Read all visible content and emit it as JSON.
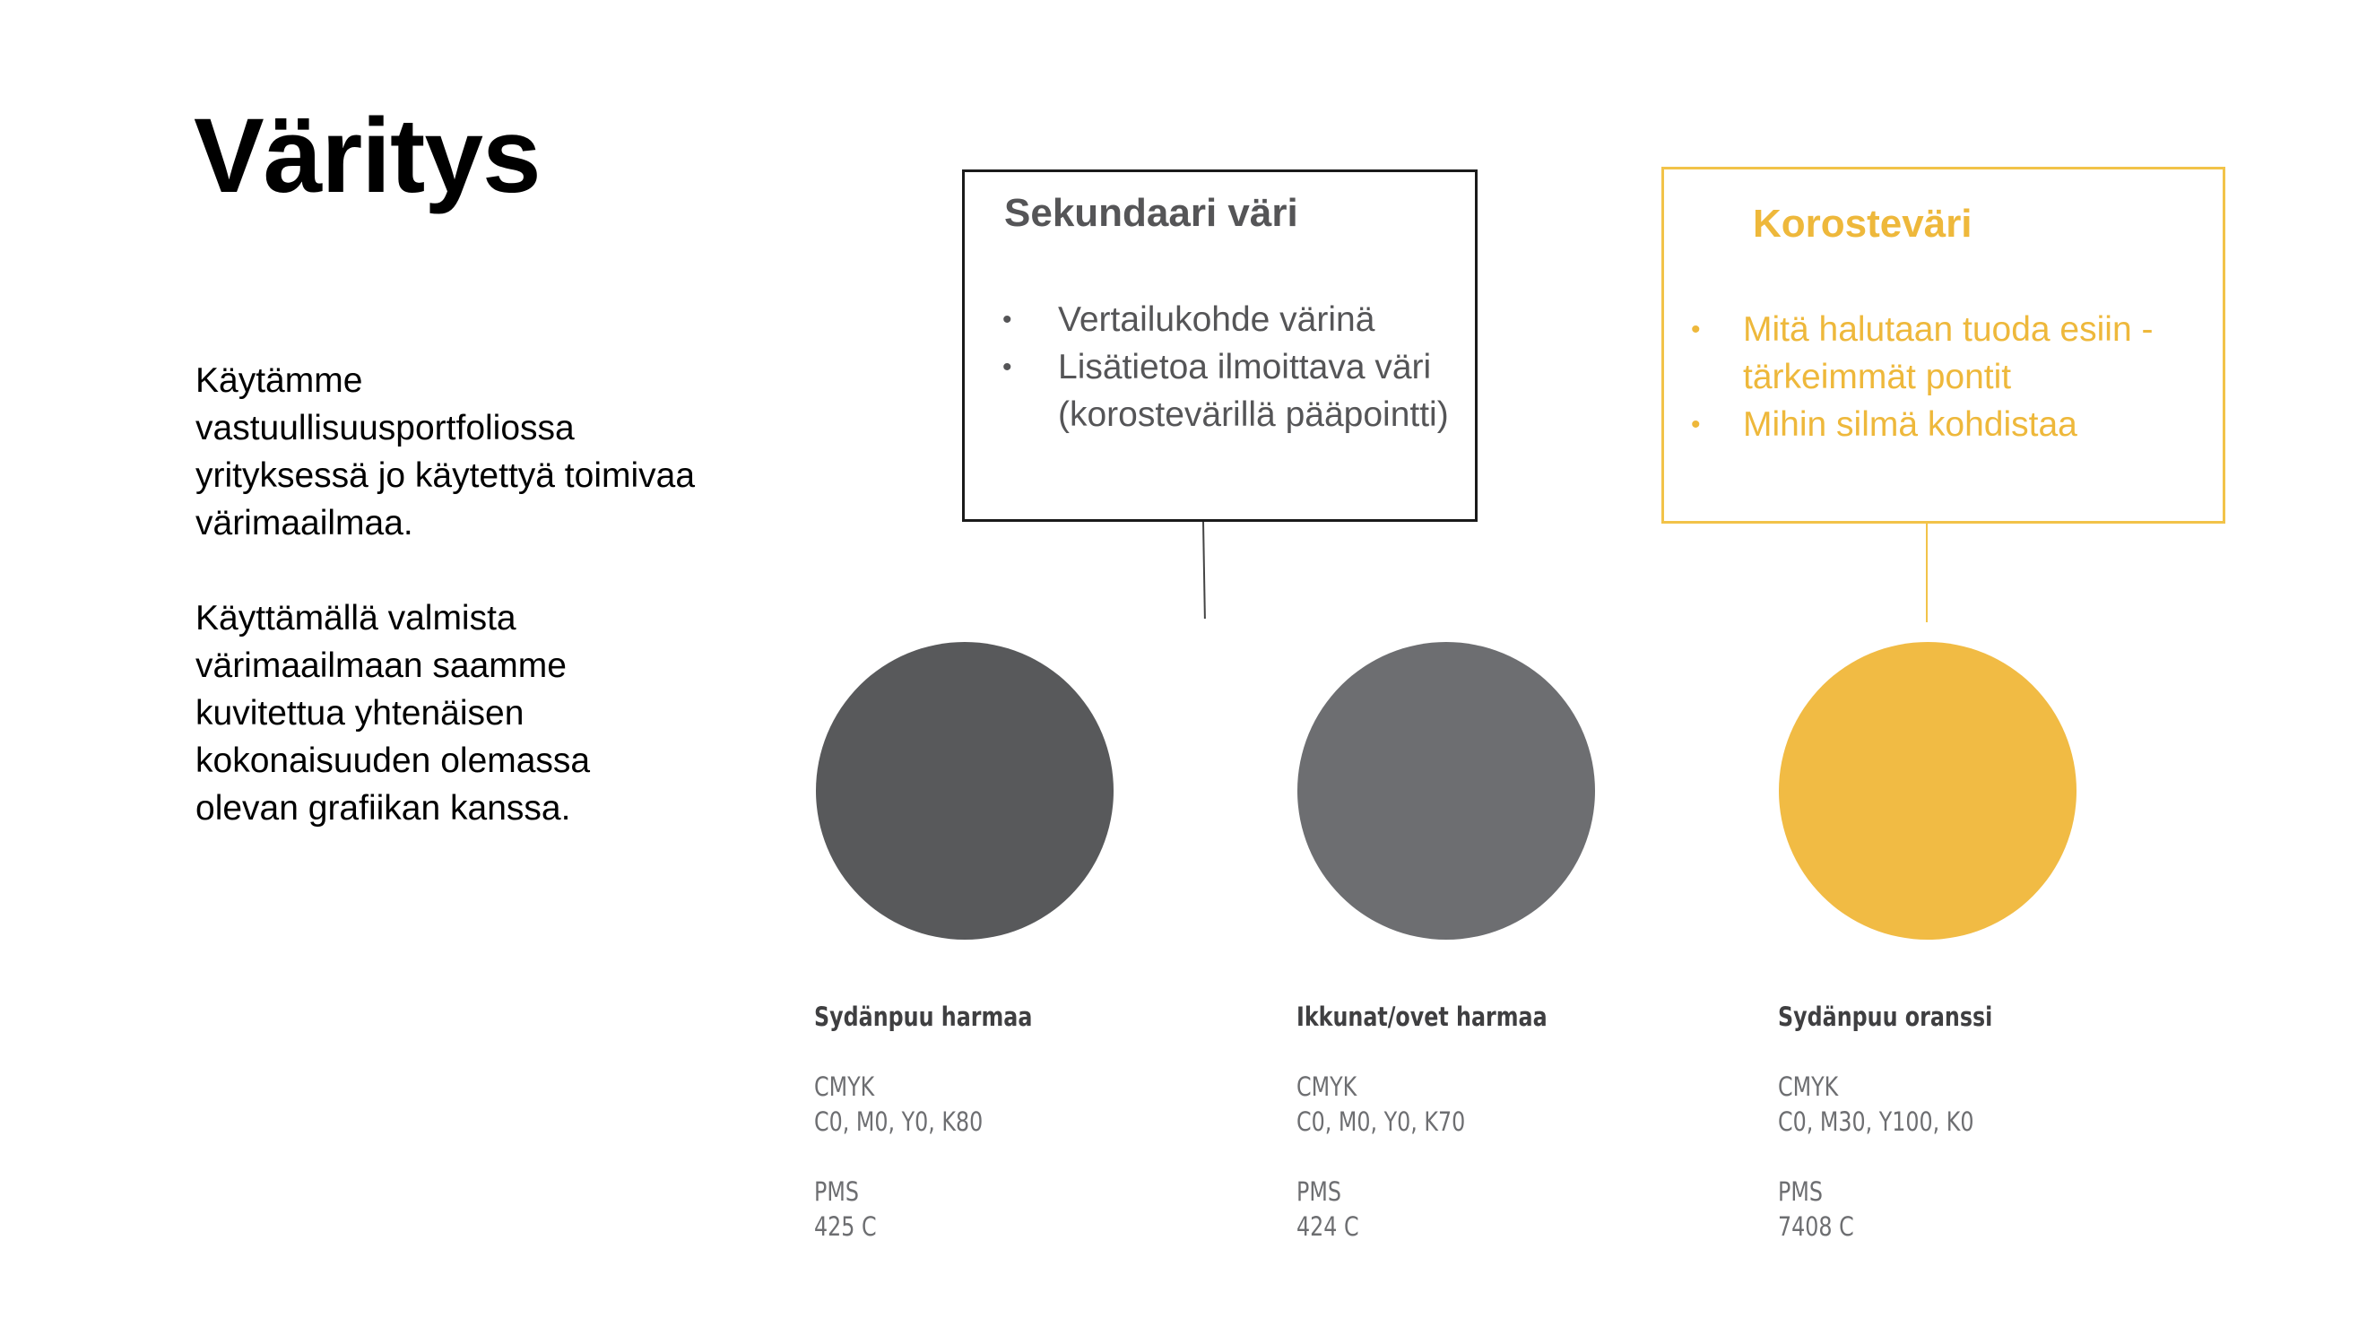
{
  "title": "Väritys",
  "intro": {
    "paragraph1": "Käytämme vastuullisuusportfoliossa yrityksessä jo käytettyä toimivaa värimaailmaa.",
    "paragraph2": "Käyttämällä valmista värimaailmaan saamme kuvitettua yhtenäisen kokonaisuuden olemassa olevan grafiikan kanssa."
  },
  "callouts": {
    "secondary": {
      "heading": "Sekundaari väri",
      "bullet": "•",
      "items": [
        "Vertailukohde värinä",
        "Lisätietoa ilmoittava väri (korostevärillä pääpointti)"
      ]
    },
    "accent": {
      "heading": "Korosteväri",
      "bullet": "•",
      "items": [
        "Mitä halutaan tuoda esiin - tärkeimmät pontit",
        "Mihin silmä kohdistaa"
      ]
    }
  },
  "swatches": [
    {
      "name": "Sydänpuu harmaa",
      "cmyk_label": "CMYK",
      "cmyk": "C0, M0, Y0, K80",
      "pms_label": "PMS",
      "pms": "425 C",
      "color": "#58595b"
    },
    {
      "name": "Ikkunat/ovet harmaa",
      "cmyk_label": "CMYK",
      "cmyk": "C0, M0, Y0, K70",
      "pms_label": "PMS",
      "pms": "424 C",
      "color": "#6d6e71"
    },
    {
      "name": "Sydänpuu oranssi",
      "cmyk_label": "CMYK",
      "cmyk": "C0, M30, Y100, K0",
      "pms_label": "PMS",
      "pms": "7408 C",
      "color": "#f1bb44"
    }
  ],
  "colors": {
    "text": "#000000",
    "secondary_text": "#555557",
    "accent": "#eeb83b",
    "accent_border": "#f2c349"
  }
}
